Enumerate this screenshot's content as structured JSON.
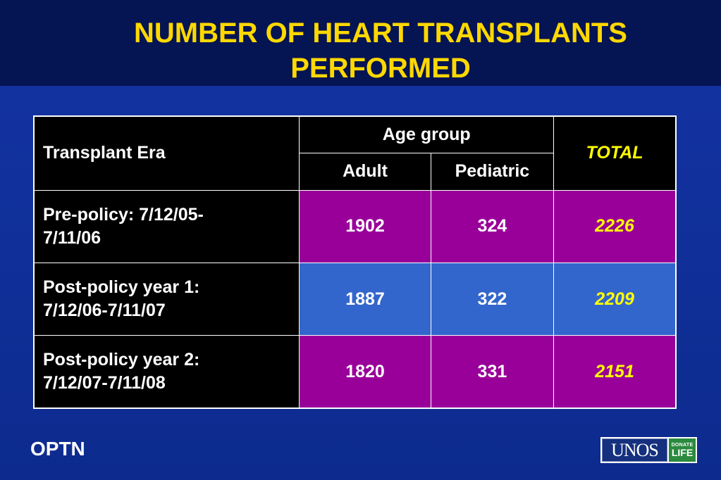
{
  "slide": {
    "title_line1": "NUMBER OF HEART TRANSPLANTS",
    "title_line2": "PERFORMED",
    "footer_left": "OPTN",
    "logo_text": "UNOS",
    "logo_badge_top": "DONATE",
    "logo_badge_bottom": "LIFE"
  },
  "table": {
    "header_era": "Transplant Era",
    "header_age_group": "Age group",
    "header_total": "TOTAL",
    "header_adult": "Adult",
    "header_pediatric": "Pediatric",
    "rows": [
      {
        "era_line1": "Pre-policy: 7/12/05-",
        "era_line2": "7/11/06",
        "adult": "1902",
        "pediatric": "324",
        "total": "2226"
      },
      {
        "era_line1": "Post-policy year 1:",
        "era_line2": "7/12/06-7/11/07",
        "adult": "1887",
        "pediatric": "322",
        "total": "2209"
      },
      {
        "era_line1": "Post-policy year 2:",
        "era_line2": "7/12/07-7/11/08",
        "adult": "1820",
        "pediatric": "331",
        "total": "2151"
      }
    ]
  },
  "colors": {
    "title": "#ffd800",
    "header_bg": "#000000",
    "row_purple": "#990099",
    "row_blue": "#3366cc",
    "total_text": "#ffff00",
    "background": "#0d2a8a"
  }
}
